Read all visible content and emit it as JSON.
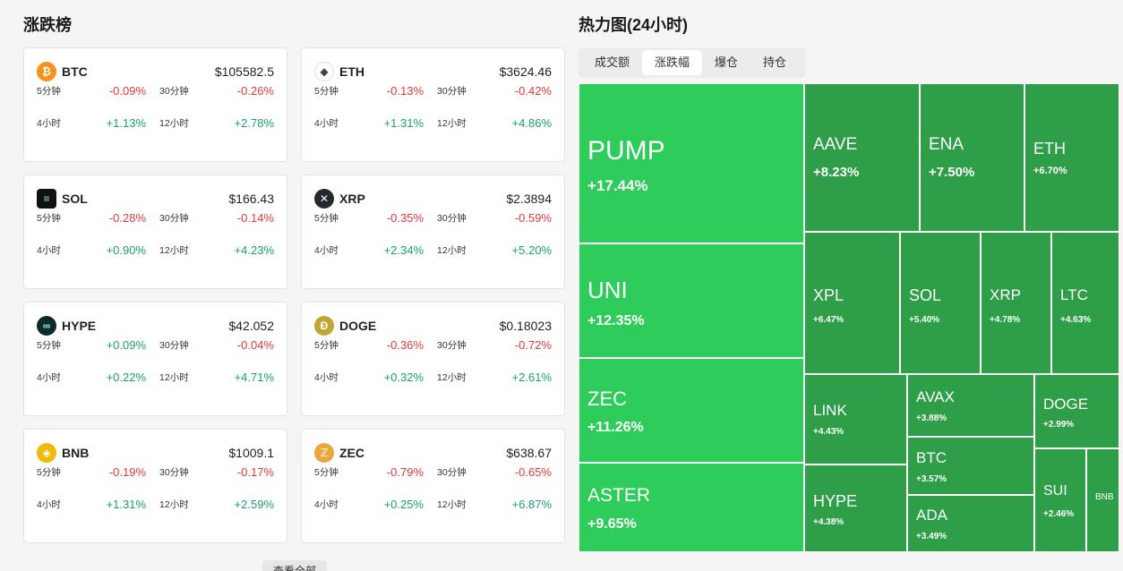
{
  "left_title": "涨跌榜",
  "right_title": "热力图(24小时)",
  "more_button": "查看全部",
  "colors": {
    "positive": "#17a36b",
    "negative": "#e4393c",
    "heat_strong": "#2ecc5a",
    "heat_medium": "#2e9e48"
  },
  "coins": [
    {
      "name": "BTC",
      "price": "$105582.5",
      "icon": "bitcoin-icon",
      "l1": "5分钟",
      "v1": "-0.09%",
      "l2": "30分钟",
      "v2": "-0.26%",
      "l3": "4小时",
      "v3": "+1.13%",
      "l4": "12小时",
      "v4": "+2.78%"
    },
    {
      "name": "ETH",
      "price": "$3624.46",
      "icon": "ethereum-icon",
      "l1": "5分钟",
      "v1": "-0.13%",
      "l2": "30分钟",
      "v2": "-0.42%",
      "l3": "4小时",
      "v3": "+1.31%",
      "l4": "12小时",
      "v4": "+4.86%"
    },
    {
      "name": "SOL",
      "price": "$166.43",
      "icon": "solana-icon",
      "l1": "5分钟",
      "v1": "-0.28%",
      "l2": "30分钟",
      "v2": "-0.14%",
      "l3": "4小时",
      "v3": "+0.90%",
      "l4": "12小时",
      "v4": "+4.23%"
    },
    {
      "name": "XRP",
      "price": "$2.3894",
      "icon": "xrp-icon",
      "l1": "5分钟",
      "v1": "-0.35%",
      "l2": "30分钟",
      "v2": "-0.59%",
      "l3": "4小时",
      "v3": "+2.34%",
      "l4": "12小时",
      "v4": "+5.20%"
    },
    {
      "name": "HYPE",
      "price": "$42.052",
      "icon": "hyperliquid-icon",
      "l1": "5分钟",
      "v1": "+0.09%",
      "l2": "30分钟",
      "v2": "-0.04%",
      "l3": "4小时",
      "v3": "+0.22%",
      "l4": "12小时",
      "v4": "+4.71%"
    },
    {
      "name": "DOGE",
      "price": "$0.18023",
      "icon": "dogecoin-icon",
      "l1": "5分钟",
      "v1": "-0.36%",
      "l2": "30分钟",
      "v2": "-0.72%",
      "l3": "4小时",
      "v3": "+0.32%",
      "l4": "12小时",
      "v4": "+2.61%"
    },
    {
      "name": "BNB",
      "price": "$1009.1",
      "icon": "bnb-icon",
      "l1": "5分钟",
      "v1": "-0.19%",
      "l2": "30分钟",
      "v2": "-0.17%",
      "l3": "4小时",
      "v3": "+1.31%",
      "l4": "12小时",
      "v4": "+2.59%"
    },
    {
      "name": "ZEC",
      "price": "$638.67",
      "icon": "zcash-icon",
      "l1": "5分钟",
      "v1": "-0.79%",
      "l2": "30分钟",
      "v2": "-0.65%",
      "l3": "4小时",
      "v3": "+0.25%",
      "l4": "12小时",
      "v4": "+6.87%"
    }
  ],
  "tabs": [
    "成交额",
    "涨跌幅",
    "爆仓",
    "持仓"
  ],
  "active_tab": "涨跌幅",
  "heatmap": [
    {
      "sym": "PUMP",
      "pct": "+17.44%"
    },
    {
      "sym": "UNI",
      "pct": "+12.35%"
    },
    {
      "sym": "ZEC",
      "pct": "+11.26%"
    },
    {
      "sym": "ASTER",
      "pct": "+9.65%"
    },
    {
      "sym": "AAVE",
      "pct": "+8.23%"
    },
    {
      "sym": "ENA",
      "pct": "+7.50%"
    },
    {
      "sym": "ETH",
      "pct": "+6.70%"
    },
    {
      "sym": "XPL",
      "pct": "+6.47%"
    },
    {
      "sym": "SOL",
      "pct": "+5.40%"
    },
    {
      "sym": "XRP",
      "pct": "+4.78%"
    },
    {
      "sym": "LTC",
      "pct": "+4.63%"
    },
    {
      "sym": "LINK",
      "pct": "+4.43%"
    },
    {
      "sym": "AVAX",
      "pct": "+3.88%"
    },
    {
      "sym": "DOGE",
      "pct": "+2.99%"
    },
    {
      "sym": "BTC",
      "pct": "+3.57%"
    },
    {
      "sym": "HYPE",
      "pct": "+4.38%"
    },
    {
      "sym": "ADA",
      "pct": "+3.49%"
    },
    {
      "sym": "SUI",
      "pct": "+2.46%"
    },
    {
      "sym": "BNB",
      "pct": ""
    }
  ]
}
